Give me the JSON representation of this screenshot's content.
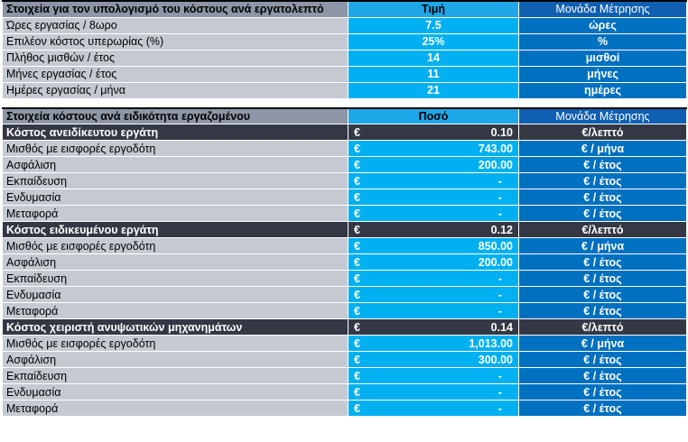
{
  "table1": {
    "header": {
      "label": "Στοιχεία για τον υπολογισμό του κόστους ανά εργατολεπτό",
      "value": "Τιμή",
      "unit": "Μονάδα Μέτρησης"
    },
    "rows": [
      {
        "label": "Ώρες εργασίας / 8ωρο",
        "value": "7.5",
        "unit": "ώρες"
      },
      {
        "label": "Επιλέον κόστος υπερωρίας (%)",
        "value": "25%",
        "unit": "%"
      },
      {
        "label": "Πλήθος μισθών / έτος",
        "value": "14",
        "unit": "μισθοί"
      },
      {
        "label": "Μήνες εργασίας / έτος",
        "value": "11",
        "unit": "μήνες"
      },
      {
        "label": "Ημέρες εργασίας / μήνα",
        "value": "21",
        "unit": "ημέρες"
      }
    ]
  },
  "table2": {
    "header": {
      "label": "Στοιχεία κόστους ανά ειδικότητα εργαζομένου",
      "value": "Ποσό",
      "unit": "Μονάδα Μέτρησης"
    },
    "currency": "€",
    "sections": [
      {
        "title": "Κόστος ανειδίκευτου εργάτη",
        "value": "0.10",
        "unit": "€/λεπτό",
        "rows": [
          {
            "label": "Μισθός με εισφορές εργοδότη",
            "value": "743.00",
            "unit": "€ / μήνα"
          },
          {
            "label": "Ασφάλιση",
            "value": "200.00",
            "unit": "€ / έτος"
          },
          {
            "label": "Εκπαίδευση",
            "value": "-",
            "unit": "€ / έτος"
          },
          {
            "label": "Ενδυμασία",
            "value": "-",
            "unit": "€ / έτος"
          },
          {
            "label": "Μεταφορά",
            "value": "-",
            "unit": "€ / έτος"
          }
        ]
      },
      {
        "title": "Κόστος ειδικευμένου εργάτη",
        "value": "0.12",
        "unit": "€/λεπτό",
        "rows": [
          {
            "label": "Μισθός με εισφορές εργοδότη",
            "value": "850.00",
            "unit": "€ / μήνα"
          },
          {
            "label": "Ασφάλιση",
            "value": "200.00",
            "unit": "€ / έτος"
          },
          {
            "label": "Εκπαίδευση",
            "value": "-",
            "unit": "€ / έτος"
          },
          {
            "label": "Ενδυμασία",
            "value": "-",
            "unit": "€ / έτος"
          },
          {
            "label": "Μεταφορά",
            "value": "-",
            "unit": "€ / έτος"
          }
        ]
      },
      {
        "title": "Κόστος χειριστή ανυψωτικών μηχανημάτων",
        "value": "0.14",
        "unit": "€/λεπτό",
        "rows": [
          {
            "label": "Μισθός με εισφορές εργοδότη",
            "value": "1,013.00",
            "unit": "€ / μήνα"
          },
          {
            "label": "Ασφάλιση",
            "value": "300.00",
            "unit": "€ / έτος"
          },
          {
            "label": "Εκπαίδευση",
            "value": "-",
            "unit": "€ / έτος"
          },
          {
            "label": "Ενδυμασία",
            "value": "-",
            "unit": "€ / έτος"
          },
          {
            "label": "Μεταφορά",
            "value": "-",
            "unit": "€ / έτος"
          }
        ]
      }
    ]
  }
}
